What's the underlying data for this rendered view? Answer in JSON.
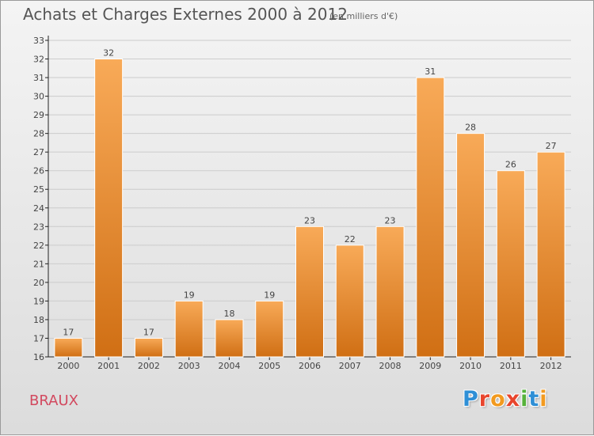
{
  "title": "Achats et Charges Externes 2000 à 2012",
  "subtitle": "(en milliers d'€)",
  "commune": "BRAUX",
  "logo": {
    "text": "Proxiti",
    "letter_colors": [
      "#2e8fd6",
      "#e8452d",
      "#f29a1f",
      "#e8452d",
      "#56b23b",
      "#2e8fd6",
      "#f29a1f"
    ]
  },
  "colors": {
    "bar_light": "#f8aa58",
    "bar_dark": "#d06f14",
    "grid": "#cccccc",
    "axis": "#222222"
  },
  "chart_data": {
    "type": "bar",
    "title": "Achats et Charges Externes 2000 à 2012",
    "subtitle": "(en milliers d'€)",
    "categories": [
      "2000",
      "2001",
      "2002",
      "2003",
      "2004",
      "2005",
      "2006",
      "2007",
      "2008",
      "2009",
      "2010",
      "2011",
      "2012"
    ],
    "values": [
      17,
      32,
      17,
      19,
      18,
      19,
      23,
      22,
      23,
      31,
      28,
      26,
      27
    ],
    "ylim": [
      16,
      33
    ],
    "yticks": [
      16,
      17,
      18,
      19,
      20,
      21,
      22,
      23,
      24,
      25,
      26,
      27,
      28,
      29,
      30,
      31,
      32,
      33
    ],
    "grid": true,
    "data_labels": true
  }
}
